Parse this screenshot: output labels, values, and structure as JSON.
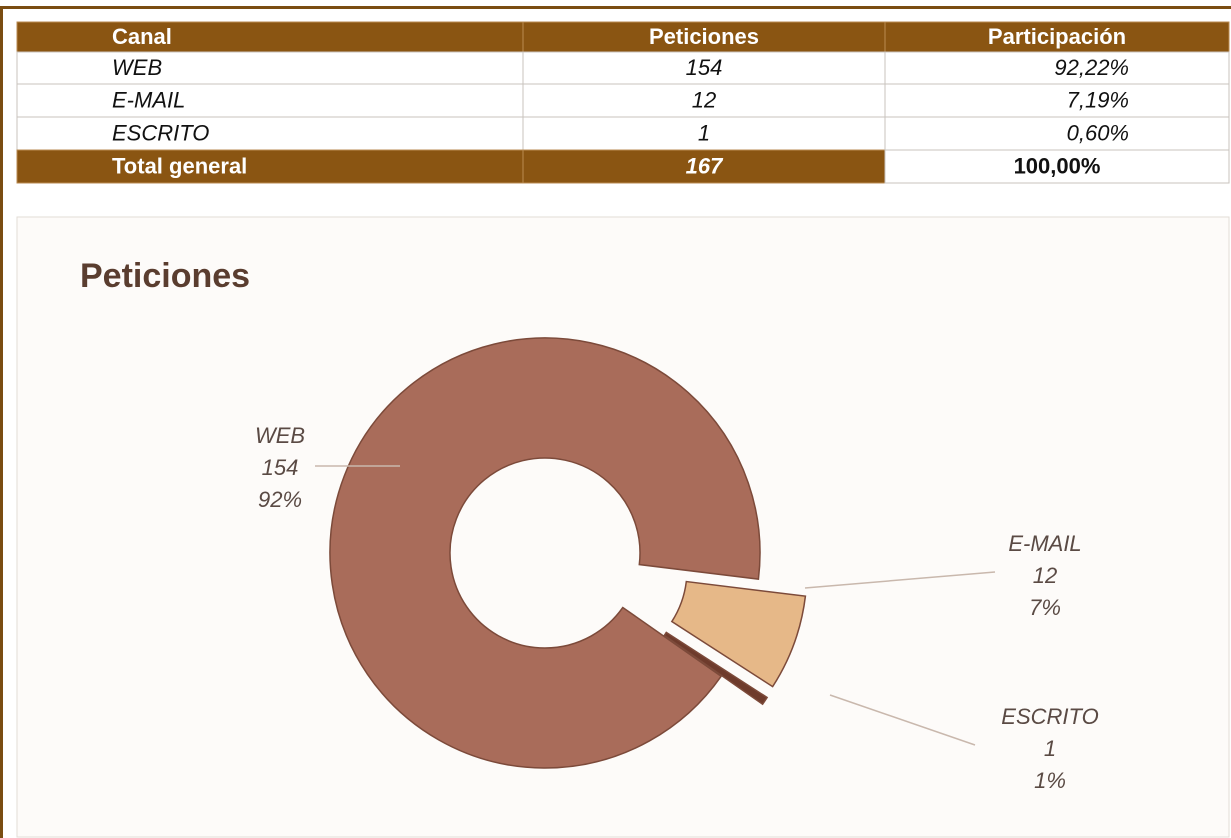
{
  "table": {
    "header": [
      "Canal",
      "Peticiones",
      "Participación"
    ],
    "rows": [
      [
        "WEB",
        "154",
        "92,22%"
      ],
      [
        "E-MAIL",
        "12",
        "7,19%"
      ],
      [
        "ESCRITO",
        "1",
        "0,60%"
      ]
    ],
    "total": [
      "Total general",
      "167",
      "100,00%"
    ]
  },
  "chart_data": {
    "type": "doughnut",
    "title": "Peticiones",
    "categories": [
      "WEB",
      "E-MAIL",
      "ESCRITO"
    ],
    "values": [
      154,
      12,
      1
    ],
    "percent_labels": [
      "92%",
      "7%",
      "1%"
    ],
    "colors": [
      "#a96c5a",
      "#e6b888",
      "#6e3b2c"
    ]
  }
}
